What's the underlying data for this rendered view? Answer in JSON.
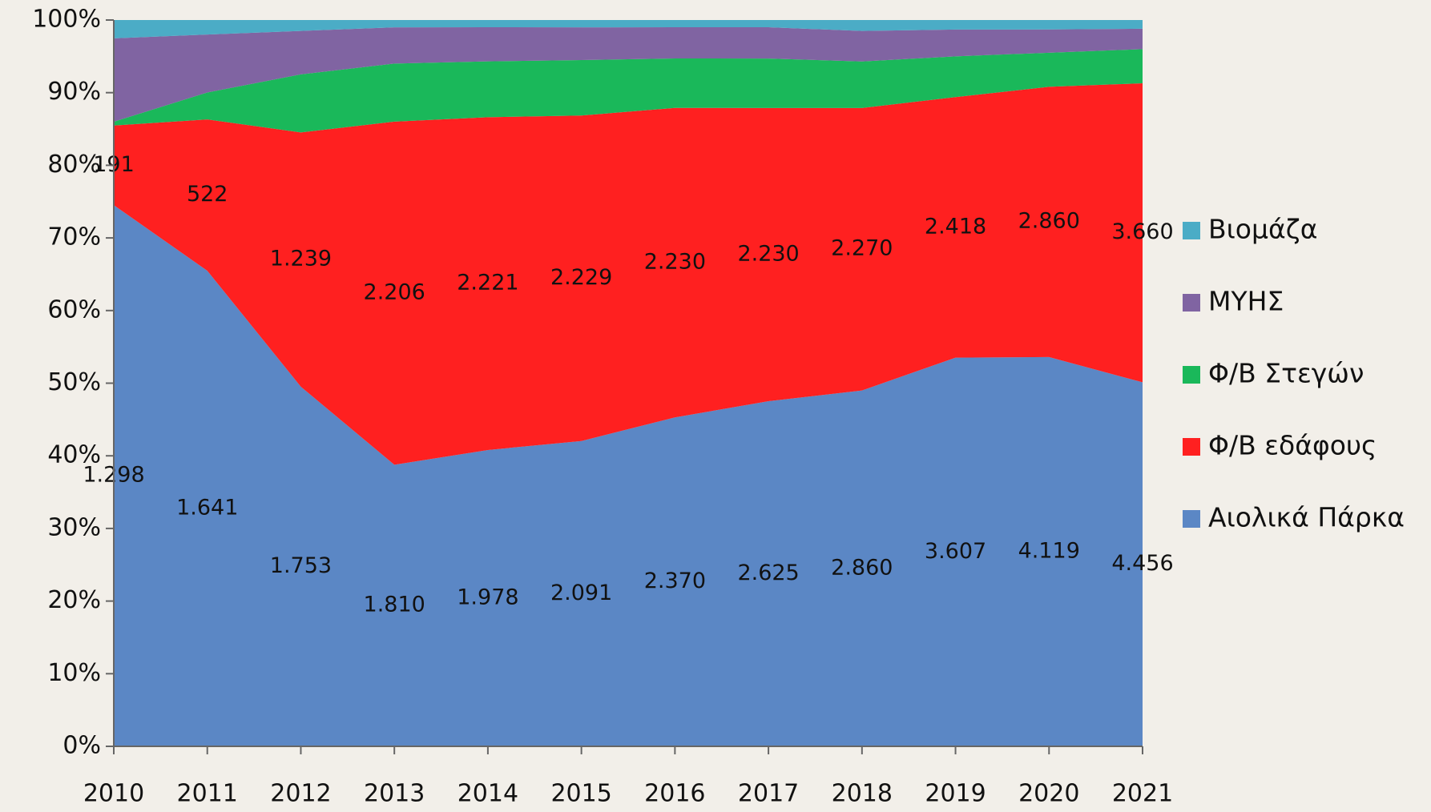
{
  "chart_data": {
    "type": "area",
    "stacking": "percent",
    "categories": [
      "2010",
      "2011",
      "2012",
      "2013",
      "2014",
      "2015",
      "2016",
      "2017",
      "2018",
      "2019",
      "2020",
      "2021"
    ],
    "ylim": [
      0,
      100
    ],
    "yticks": [
      {
        "value": 0,
        "label": "0%"
      },
      {
        "value": 10,
        "label": "10%"
      },
      {
        "value": 20,
        "label": "20%"
      },
      {
        "value": 30,
        "label": "30%"
      },
      {
        "value": 40,
        "label": "40%"
      },
      {
        "value": 50,
        "label": "50%"
      },
      {
        "value": 60,
        "label": "60%"
      },
      {
        "value": 70,
        "label": "70%"
      },
      {
        "value": 80,
        "label": "80%"
      },
      {
        "value": 90,
        "label": "90%"
      },
      {
        "value": 100,
        "label": "100%"
      }
    ],
    "series": [
      {
        "name": "Αιολικά Πάρκα",
        "color": "#5b87c5",
        "values": [
          1298,
          1641,
          1753,
          1810,
          1978,
          2091,
          2370,
          2625,
          2860,
          3607,
          4119,
          4456
        ],
        "value_labels": [
          "1.298",
          "1.641",
          "1.753",
          "1.810",
          "1.978",
          "2.091",
          "2.370",
          "2.625",
          "2.860",
          "3.607",
          "4.119",
          "4.456"
        ]
      },
      {
        "name": "Φ/Β εδάφους",
        "color": "#ff2020",
        "values": [
          191,
          522,
          1239,
          2206,
          2221,
          2229,
          2230,
          2230,
          2270,
          2418,
          2860,
          3660
        ],
        "value_labels": [
          "191",
          "522",
          "1.239",
          "2.206",
          "2.221",
          "2.229",
          "2.230",
          "2.230",
          "2.270",
          "2.418",
          "2.860",
          "3.660"
        ]
      },
      {
        "name": "Φ/Β Στεγών",
        "color": "#1ab85a",
        "values": [
          9,
          93,
          283,
          373,
          373,
          380,
          356,
          376,
          374,
          378,
          361,
          418
        ]
      },
      {
        "name": "ΜΥΗΣ",
        "color": "#8064a2",
        "values": [
          200,
          200,
          212,
          233,
          228,
          224,
          225,
          238,
          245,
          249,
          246,
          249
        ]
      },
      {
        "name": "Βιομάζα",
        "color": "#4bacc6",
        "values": [
          44,
          50,
          53,
          47,
          48,
          50,
          52,
          55,
          88,
          88,
          100,
          107
        ]
      }
    ]
  }
}
